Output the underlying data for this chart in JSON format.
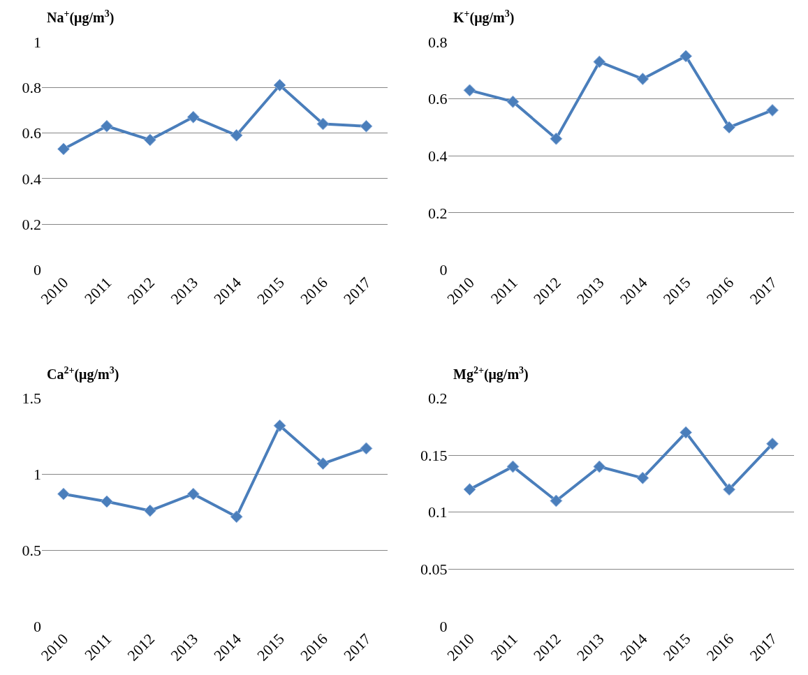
{
  "chart_data": [
    {
      "type": "line",
      "title": "Na$^{+}$(μg/m$^{3}$)",
      "categories": [
        "2010",
        "2011",
        "2012",
        "2013",
        "2014",
        "2015",
        "2016",
        "2017"
      ],
      "series": [
        {
          "color": "#4a7ebb",
          "values": [
            0.53,
            0.63,
            0.57,
            0.67,
            0.59,
            0.81,
            0.64,
            0.63
          ]
        }
      ],
      "ylim": [
        0,
        1
      ],
      "yticks": [
        0,
        0.2,
        0.4,
        0.6,
        0.8,
        1
      ],
      "grid": "y",
      "marker": "diamond",
      "line_style": "solid"
    },
    {
      "type": "line",
      "title": "K$^{+}$(μg/m$^{3}$)",
      "categories": [
        "2010",
        "2011",
        "2012",
        "2013",
        "2014",
        "2015",
        "2016",
        "2017"
      ],
      "series": [
        {
          "color": "#4a7ebb",
          "values": [
            0.63,
            0.59,
            0.46,
            0.73,
            0.67,
            0.75,
            0.5,
            0.56
          ]
        }
      ],
      "ylim": [
        0,
        0.8
      ],
      "yticks": [
        0,
        0.2,
        0.4,
        0.6,
        0.8
      ],
      "grid": "y",
      "marker": "diamond",
      "line_style": "solid"
    },
    {
      "type": "line",
      "title": "Ca$^{2+}$(μg/m$^{3}$)",
      "categories": [
        "2010",
        "2011",
        "2012",
        "2013",
        "2014",
        "2015",
        "2016",
        "2017"
      ],
      "series": [
        {
          "color": "#4a7ebb",
          "values": [
            0.87,
            0.82,
            0.76,
            0.87,
            0.72,
            1.32,
            1.07,
            1.17
          ]
        }
      ],
      "ylim": [
        0,
        1.5
      ],
      "yticks": [
        0,
        0.5,
        1,
        1.5
      ],
      "grid": "y",
      "marker": "diamond",
      "line_style": "solid"
    },
    {
      "type": "line",
      "title": "Mg$^{2+}$(μg/m$^{3}$)",
      "categories": [
        "2010",
        "2011",
        "2012",
        "2013",
        "2014",
        "2015",
        "2016",
        "2017"
      ],
      "series": [
        {
          "color": "#4a7ebb",
          "values": [
            0.12,
            0.14,
            0.11,
            0.14,
            0.13,
            0.17,
            0.12,
            0.16
          ]
        }
      ],
      "ylim": [
        0,
        0.2
      ],
      "yticks": [
        0,
        0.05,
        0.1,
        0.15,
        0.2
      ],
      "grid": "y",
      "marker": "diamond",
      "line_style": "solid"
    }
  ]
}
